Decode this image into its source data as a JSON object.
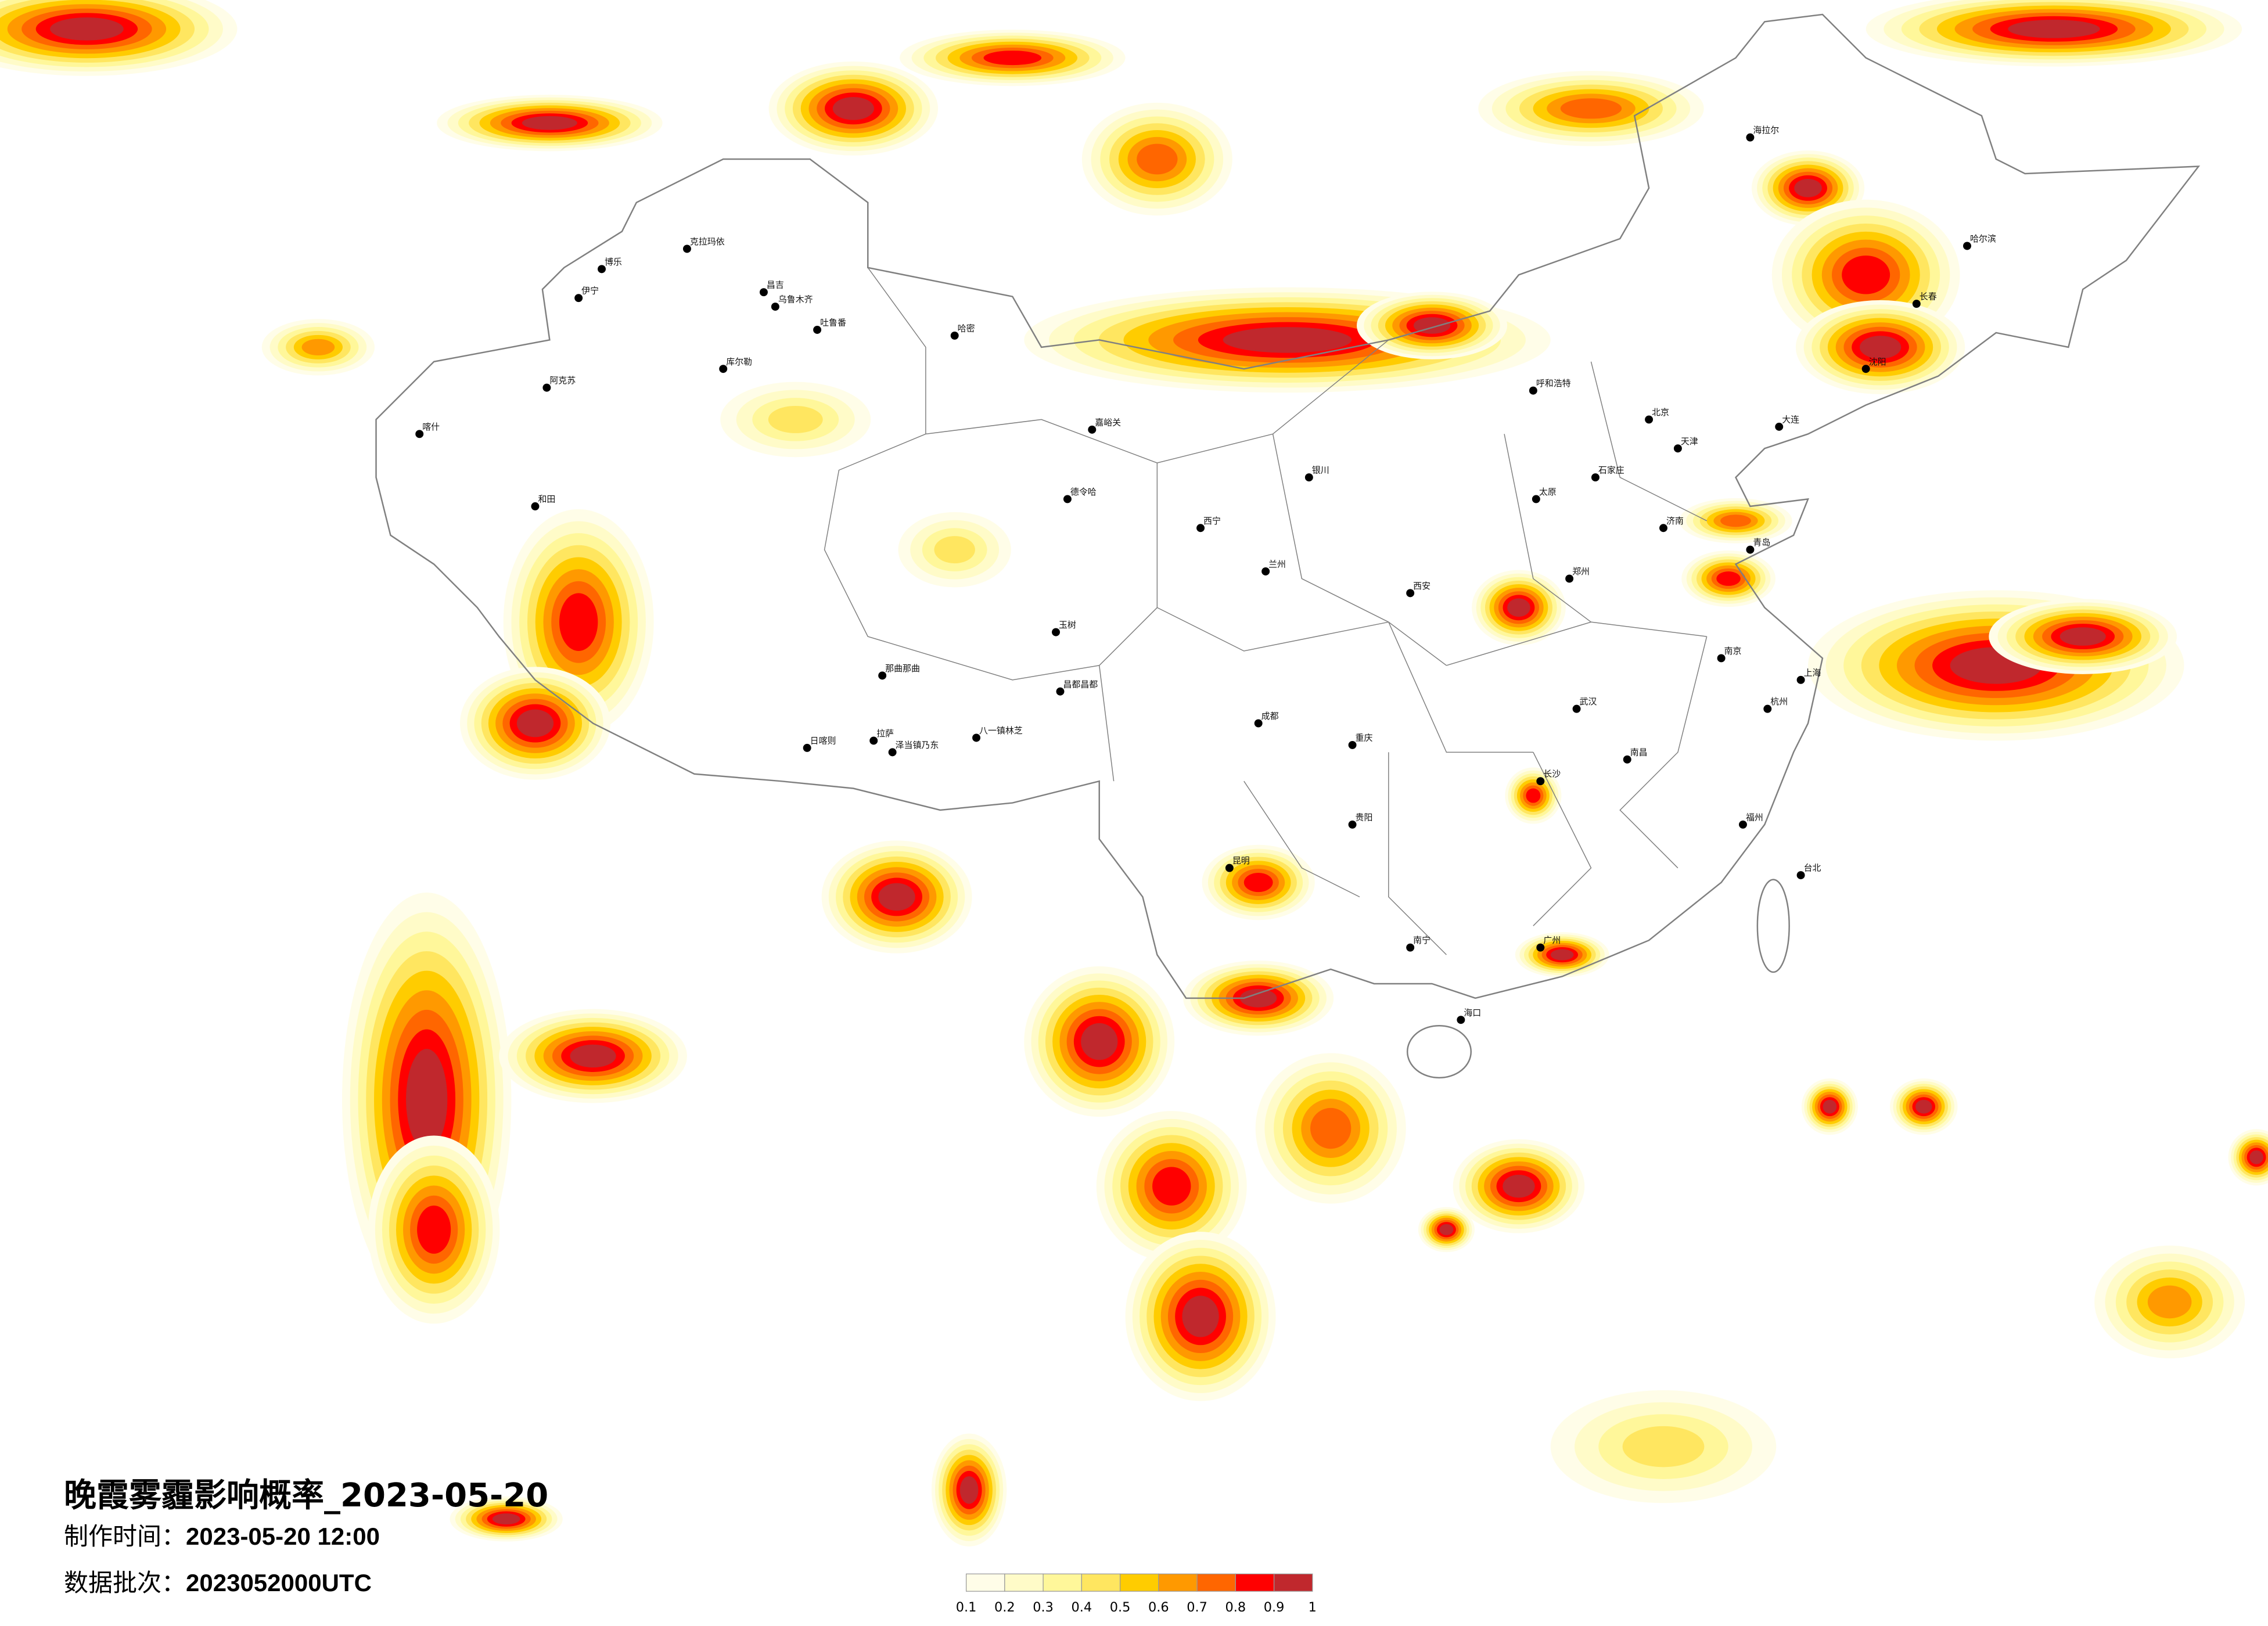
{
  "title": "晚霞雾霾影响概率_2023-05-20",
  "production_time": {
    "label": "制作时间：",
    "value": "2023-05-20 12:00"
  },
  "data_batch": {
    "label": "数据批次：",
    "value": "2023052000UTC"
  },
  "legend": {
    "ticks": [
      "0.1",
      "0.2",
      "0.3",
      "0.4",
      "0.5",
      "0.6",
      "0.7",
      "0.8",
      "0.9",
      "1"
    ],
    "colors": [
      "#FFFDE8",
      "#FFFBC8",
      "#FFF79A",
      "#FFE660",
      "#FFCC00",
      "#FF9900",
      "#FF6600",
      "#FF0000",
      "#C0282D"
    ]
  },
  "map": {
    "region": "China",
    "boundary_color": "#808080",
    "city_marker_color": "#000000"
  },
  "cities": [
    "克拉玛依",
    "博乐",
    "伊宁",
    "昌吉",
    "乌鲁木齐",
    "吐鲁番",
    "哈密",
    "库尔勒",
    "阿克苏",
    "喀什",
    "和田",
    "嘉峪关",
    "德令哈",
    "拉萨",
    "日喀则",
    "泽当镇乃东",
    "那曲那曲",
    "八一镇林芝",
    "昌都昌都",
    "玉树",
    "兰州",
    "西宁",
    "银川",
    "呼和浩特",
    "北京",
    "天津",
    "石家庄",
    "太原",
    "济南",
    "郑州",
    "西安",
    "武汉",
    "成都",
    "重庆",
    "长沙",
    "南京",
    "上海",
    "杭州",
    "福州",
    "南昌",
    "广州",
    "南宁",
    "昆明",
    "贵阳",
    "海口",
    "台北",
    "沈阳",
    "长春",
    "哈尔滨",
    "大连",
    "青岛",
    "海拉尔"
  ]
}
